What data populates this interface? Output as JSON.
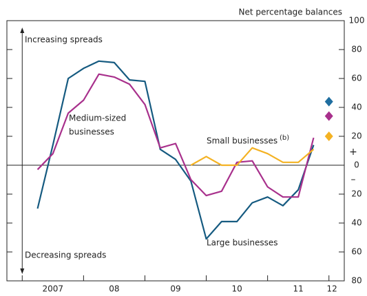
{
  "chart_data": {
    "type": "line",
    "axis_label": "Net percentage balances",
    "xlim": [
      2006.75,
      2012.25
    ],
    "xticks": [
      2007,
      2008,
      2009,
      2010,
      2011,
      2012
    ],
    "x_labels": [
      {
        "value": 2007.5,
        "label": "2007"
      },
      {
        "value": 2008.5,
        "label": "08"
      },
      {
        "value": 2009.5,
        "label": "09"
      },
      {
        "value": 2010.5,
        "label": "10"
      },
      {
        "value": 2011.5,
        "label": "11"
      },
      {
        "value": 2012.05,
        "label": "12"
      }
    ],
    "ylim": [
      -80,
      100
    ],
    "yticks": [
      {
        "value": -80,
        "label": "80"
      },
      {
        "value": -60,
        "label": "60"
      },
      {
        "value": -40,
        "label": "40"
      },
      {
        "value": -20,
        "label": "20"
      },
      0,
      20,
      40,
      60,
      80,
      100
    ],
    "sign_labels": [
      "+",
      "–"
    ],
    "annotations": {
      "up": "Increasing spreads",
      "down": "Decreasing spreads",
      "medium": [
        "Medium-sized",
        "businesses"
      ],
      "small": "Small businesses",
      "small_note": "(b)",
      "large": "Large businesses"
    },
    "series": [
      {
        "name": "Large businesses",
        "color": "#155a80",
        "x": [
          2007.25,
          2007.5,
          2007.75,
          2008,
          2008.25,
          2008.5,
          2008.75,
          2009,
          2009.25,
          2009.5,
          2009.75,
          2010,
          2010.25,
          2010.5,
          2010.75,
          2011,
          2011.25,
          2011.5,
          2011.75
        ],
        "values": [
          -30,
          14,
          60,
          67,
          72,
          71,
          59,
          58,
          11,
          4,
          -11,
          -51,
          -39,
          -39,
          -26,
          -22,
          -28,
          -17,
          14
        ]
      },
      {
        "name": "Medium-sized businesses",
        "color": "#a8308c",
        "x": [
          2007.25,
          2007.5,
          2007.75,
          2008,
          2008.25,
          2008.5,
          2008.75,
          2009,
          2009.25,
          2009.5,
          2009.75,
          2010,
          2010.25,
          2010.5,
          2010.75,
          2011,
          2011.25,
          2011.5,
          2011.75
        ],
        "values": [
          -3,
          8,
          36,
          45,
          63,
          61,
          56,
          42,
          12,
          15,
          -10,
          -21,
          -18,
          2,
          3,
          -15,
          -22,
          -22,
          19
        ]
      },
      {
        "name": "Small businesses",
        "color": "#f4b223",
        "x": [
          2009.75,
          2010,
          2010.25,
          2010.5,
          2010.75,
          2011,
          2011.25,
          2011.5,
          2011.75
        ],
        "values": [
          0,
          6,
          0,
          0,
          12,
          8,
          2,
          2,
          11
        ]
      }
    ],
    "markers": {
      "x": 2012,
      "colors": [
        "#1f6ea0",
        "#a8308c",
        "#f4b223"
      ],
      "values": [
        44,
        34,
        20
      ]
    }
  }
}
